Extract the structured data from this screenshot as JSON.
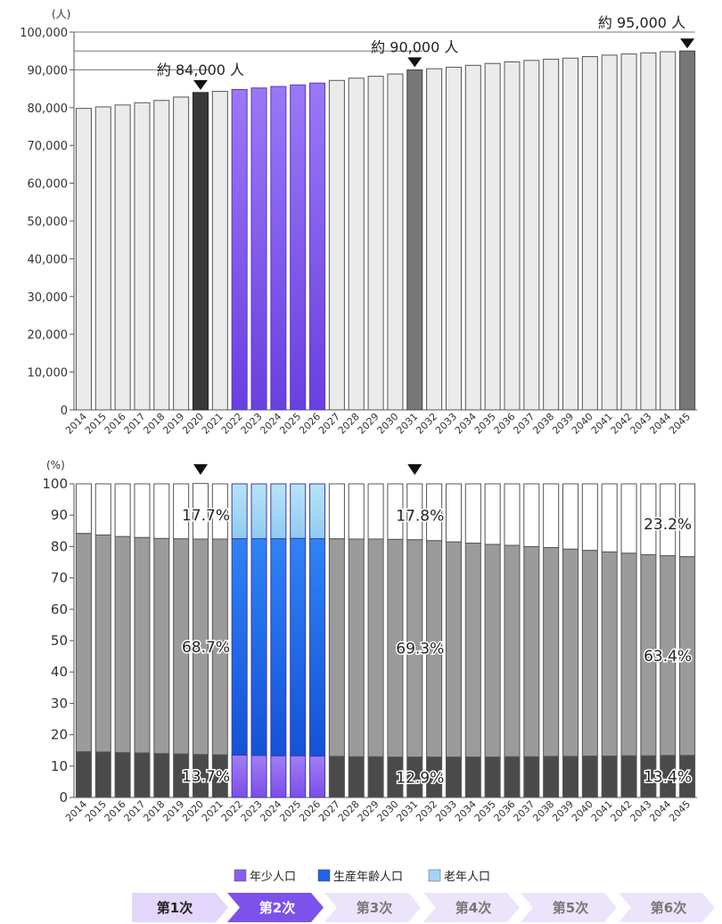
{
  "chart_data": [
    {
      "type": "bar",
      "ylabel": "(人)",
      "ylim": [
        0,
        100000
      ],
      "yticks": [
        "0",
        "10,000",
        "20,000",
        "30,000",
        "40,000",
        "50,000",
        "60,000",
        "70,000",
        "80,000",
        "90,000",
        "100,000"
      ],
      "categories": [
        "2014",
        "2015",
        "2016",
        "2017",
        "2018",
        "2019",
        "2020",
        "2021",
        "2022",
        "2023",
        "2024",
        "2025",
        "2026",
        "2027",
        "2028",
        "2029",
        "2030",
        "2031",
        "2032",
        "2033",
        "2034",
        "2035",
        "2036",
        "2037",
        "2038",
        "2039",
        "2040",
        "2041",
        "2042",
        "2043",
        "2044",
        "2045"
      ],
      "values": [
        79800,
        80200,
        80700,
        81300,
        81900,
        82800,
        84000,
        84300,
        84800,
        85200,
        85600,
        86000,
        86500,
        87200,
        87800,
        88300,
        88900,
        90000,
        90300,
        90700,
        91200,
        91700,
        92100,
        92500,
        92800,
        93100,
        93500,
        93900,
        94200,
        94500,
        94800,
        95000
      ],
      "highlight_years": [
        "2020",
        "2031",
        "2045"
      ],
      "phase2_years": [
        "2022",
        "2023",
        "2024",
        "2025",
        "2026"
      ],
      "annotations": [
        {
          "year": "2020",
          "text": "約 84,000 人"
        },
        {
          "year": "2031",
          "text": "約 90,000 人"
        },
        {
          "year": "2045",
          "text": "約 95,000 人"
        }
      ]
    },
    {
      "type": "stacked_bar_100",
      "ylabel": "(%)",
      "ylim": [
        0,
        100
      ],
      "yticks": [
        "0",
        "10",
        "20",
        "30",
        "40",
        "50",
        "60",
        "70",
        "80",
        "90",
        "100"
      ],
      "categories": [
        "2014",
        "2015",
        "2016",
        "2017",
        "2018",
        "2019",
        "2020",
        "2021",
        "2022",
        "2023",
        "2024",
        "2025",
        "2026",
        "2027",
        "2028",
        "2029",
        "2030",
        "2031",
        "2032",
        "2033",
        "2034",
        "2035",
        "2036",
        "2037",
        "2038",
        "2039",
        "2040",
        "2041",
        "2042",
        "2043",
        "2044",
        "2045"
      ],
      "series": [
        {
          "name": "年少人口",
          "values": [
            14.6,
            14.5,
            14.3,
            14.2,
            14.0,
            13.9,
            13.7,
            13.6,
            13.5,
            13.4,
            13.3,
            13.3,
            13.2,
            13.1,
            13.0,
            13.0,
            12.9,
            12.9,
            12.9,
            12.9,
            12.9,
            12.9,
            13.0,
            13.0,
            13.1,
            13.1,
            13.2,
            13.2,
            13.3,
            13.3,
            13.4,
            13.4
          ]
        },
        {
          "name": "生産年齢人口",
          "values": [
            69.6,
            69.2,
            68.9,
            68.7,
            68.6,
            68.6,
            68.7,
            68.8,
            69.0,
            69.1,
            69.2,
            69.3,
            69.3,
            69.4,
            69.4,
            69.4,
            69.4,
            69.3,
            69.0,
            68.6,
            68.2,
            67.8,
            67.4,
            67.0,
            66.6,
            66.1,
            65.6,
            65.1,
            64.6,
            64.1,
            63.7,
            63.4
          ]
        },
        {
          "name": "老年人口",
          "values": [
            15.8,
            16.3,
            16.8,
            17.1,
            17.4,
            17.5,
            17.7,
            17.6,
            17.5,
            17.5,
            17.5,
            17.4,
            17.5,
            17.5,
            17.6,
            17.6,
            17.7,
            17.8,
            18.1,
            18.5,
            18.9,
            19.3,
            19.6,
            20.0,
            20.3,
            20.8,
            21.2,
            21.7,
            22.1,
            22.6,
            22.9,
            23.2
          ]
        }
      ],
      "labels": [
        {
          "year": "2020",
          "young": "13.7%",
          "working": "68.7%",
          "old": "17.7%"
        },
        {
          "year": "2031",
          "young": "12.9%",
          "working": "69.3%",
          "old": "17.8%"
        },
        {
          "year": "2045",
          "young": "13.4%",
          "working": "63.4%",
          "old": "23.2%"
        }
      ],
      "highlight_years": [
        "2020",
        "2031"
      ],
      "phase2_years": [
        "2022",
        "2023",
        "2024",
        "2025",
        "2026"
      ],
      "legend": [
        "年少人口",
        "生産年齢人口",
        "老年人口"
      ],
      "legend_colors": [
        "#8a5cf0",
        "#1e63e8",
        "#9fd6f5"
      ]
    }
  ],
  "phases": [
    "第1次",
    "第2次",
    "第3次",
    "第4次",
    "第5次",
    "第6次"
  ],
  "active_phase": 1
}
